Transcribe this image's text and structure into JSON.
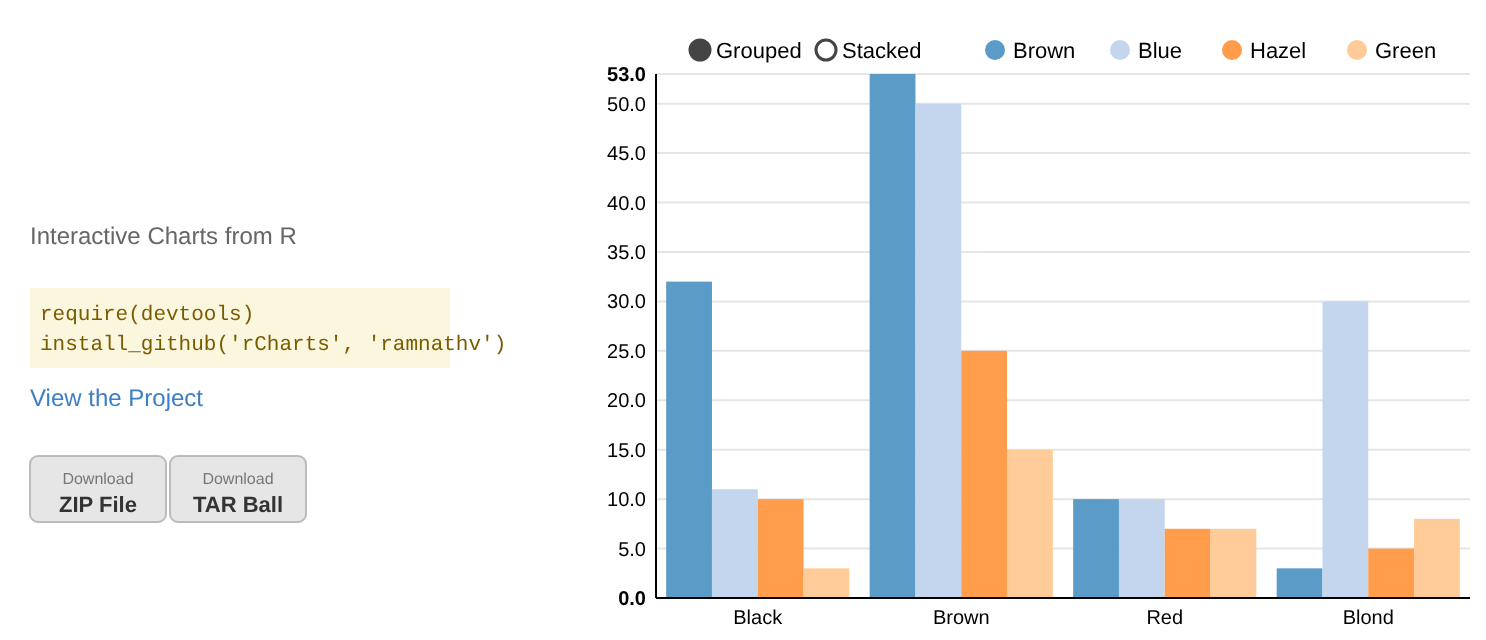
{
  "chart_data": {
    "type": "bar",
    "categories": [
      "Black",
      "Brown",
      "Red",
      "Blond"
    ],
    "series": [
      {
        "name": "Brown",
        "color": "#5b9bc8",
        "values": [
          32,
          53,
          10,
          3
        ]
      },
      {
        "name": "Blue",
        "color": "#c3d6ee",
        "values": [
          11,
          50,
          10,
          30
        ]
      },
      {
        "name": "Hazel",
        "color": "#ff9d4d",
        "values": [
          10,
          25,
          7,
          5
        ]
      },
      {
        "name": "Green",
        "color": "#ffcb98",
        "values": [
          3,
          15,
          7,
          8
        ]
      }
    ],
    "ylim": [
      0,
      53
    ],
    "yticks": [
      {
        "value": 0,
        "label": "0.0"
      },
      {
        "value": 5,
        "label": "5.0"
      },
      {
        "value": 10,
        "label": "10.0"
      },
      {
        "value": 15,
        "label": "15.0"
      },
      {
        "value": 20,
        "label": "20.0"
      },
      {
        "value": 25,
        "label": "25.0"
      },
      {
        "value": 30,
        "label": "30.0"
      },
      {
        "value": 35,
        "label": "35.0"
      },
      {
        "value": 40,
        "label": "40.0"
      },
      {
        "value": 45,
        "label": "45.0"
      },
      {
        "value": 50,
        "label": "50.0"
      },
      {
        "value": 53,
        "label": "53.0"
      }
    ],
    "grid": "y",
    "legend": "top right",
    "annotations": [
      "Interactive Charts from R",
      "require(devtools)",
      "install_github('rCharts', 'ramnathv')",
      "View the Project",
      "Download",
      "ZIP File",
      "Download",
      "TAR Ball",
      "Grouped",
      "Stacked"
    ]
  }
}
